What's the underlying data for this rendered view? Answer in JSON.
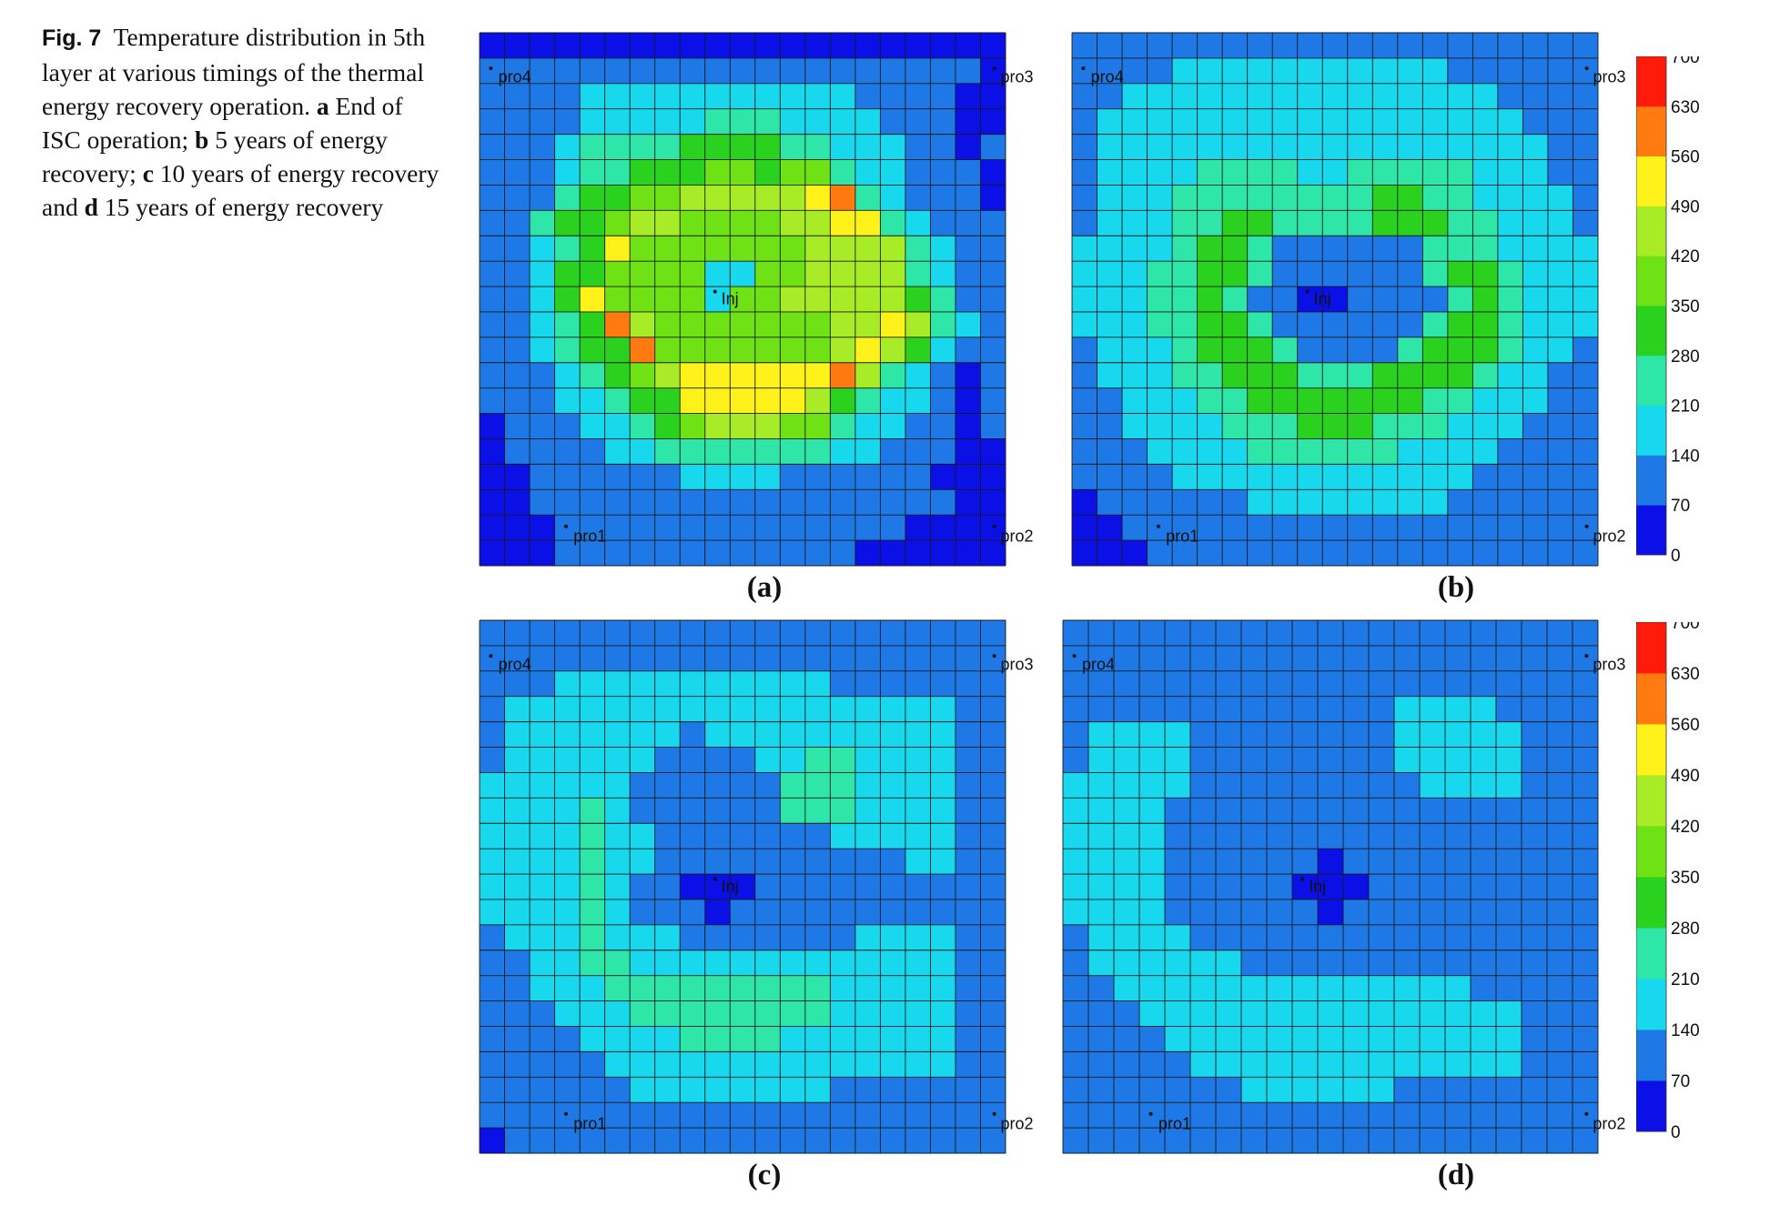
{
  "caption": {
    "label": "Fig. 7",
    "p1": "Temperature distribution in 5th layer at various timings of the thermal energy recovery operation. ",
    "a_key": "a",
    "a_text": " End of ISC operation; ",
    "b_key": "b",
    "b_text": " 5 years of energy recovery; ",
    "c_key": "c",
    "c_text": " 10 years of energy recovery and ",
    "d_key": "d",
    "d_text": " 15 years of energy recovery"
  },
  "colorscale": {
    "ticks": [
      "700",
      "630",
      "560",
      "490",
      "420",
      "350",
      "280",
      "210",
      "140",
      "70",
      "0"
    ],
    "colors": [
      "#0a10e6",
      "#1e78e6",
      "#17d8ec",
      "#2ee6a8",
      "#2ad21f",
      "#6ee214",
      "#a8ec28",
      "#fff21a",
      "#ff7a10",
      "#ff1a0a"
    ],
    "grid_line": "#1a1a1a"
  },
  "chart_data": [
    {
      "type": "heatmap",
      "panel_label": "(a)",
      "well_labels": [
        "pro4",
        "pro3",
        "pro1",
        "pro2",
        "Inj"
      ],
      "grid": [
        "AAAAAAAAAAAAAAAAAAAAA",
        "BBBBBBBBBBBBBBBBBBBBA",
        "BBBBCCCCCCCCCCCBBBBAA",
        "BBBBCCCCCDDDCCCCBBBAA",
        "BBBCDDDDEEEEDDCCCBBAB",
        "BBBCDDEEEFFEFFDCCBBBA",
        "BBBDEEFFGGGGGHIDCBBBA",
        "BBDEEFGGFFFFGGHHDCBBB",
        "BBCDEHFFFFFFFGGGGDCBB",
        "BBCEEFFFFCCFFGGGGDCBB",
        "BBCEHFFFFCFFGGGGGEDBB",
        "BBCDEIGFFFFFFFGGHGDCB",
        "BBCDEEIFFFFFFFGHGECBB",
        "BBBCDEFGHHHHHHIGDCBAB",
        "BBBCCDEEHHHHHGEDCCBAB",
        "ABBBCCDEFGGGFFDCCBBAB",
        "ABBBBCCDDDDDDDCCBBBAA",
        "AABBBBBBCCCCBBBBBBAAA",
        "AABBBBBBBBBBBBBBBBBAA",
        "AAABBBBBBBBBBBBBBAAAA",
        "AAABBBBBBBBBBBBAAAAAA"
      ]
    },
    {
      "type": "heatmap",
      "panel_label": "(b)",
      "well_labels": [
        "pro4",
        "pro3",
        "pro1",
        "pro2",
        "Inj"
      ],
      "grid": [
        "BBBBBBBBBBBBBBBBBBBBB",
        "BBBBCCCCCCCCCCCBBBBBB",
        "BBCCCCCCCCCCCCCCCBBBB",
        "BCCCCCCCCCCCCCCCCCBBB",
        "BCCCCCCCCCCCCCCCCCCBB",
        "BCCCCDDDDCCDDDDDCCCBB",
        "BCCCDDDDDDDDEEDDCCCCB",
        "BCCCDDEEDDDDEEEDDCCCB",
        "CCCCDEEDBBBBBBDDDCCCC",
        "CCCDDEEDBBBBBBDEEDCCC",
        "CCCDDEDBBAABBBBDEDCCC",
        "CCCDDEEDBBBBBBDEEDCCC",
        "BCCCDEEEDBBBBDEEEDCCB",
        "BCCCDDEEEDDDEEEEDCCBB",
        "BBCCCDDEEEEEEEDDCCCBB",
        "BBCCCCDDDEEEDDDCCCBBB",
        "BBBCCCCDDDDDDCCCCBBBB",
        "BBBBCCCCCCCCCCCCBBBBB",
        "ABBBBBBCCCCCCCCBBBBBB",
        "AABBBBBBBBBBBBBBBBBBB",
        "AAABBBBBBBBBBBBBBBBBB"
      ]
    },
    {
      "type": "heatmap",
      "panel_label": "(c)",
      "well_labels": [
        "pro4",
        "pro3",
        "pro1",
        "pro2",
        "Inj"
      ],
      "grid": [
        "BBBBBBBBBBBBBBBBBBBBB",
        "BBBBBBBBBBBBBBBBBBBBB",
        "BBBCCCCCCCCCCCBBBBBBB",
        "BCCCCCCCCCCCCCCCCCCBB",
        "BCCCCCCCBCCCCCCCCCCBB",
        "BCCCCCCBBBBCCDDCCCCBB",
        "CCCCCCBBBBBBDDDCCCCBB",
        "CCCCDCBBBBBBDDDCCCCBB",
        "CCCCDCCBBBBBBBCCCCCBB",
        "CCCCDCCBBBBBBBBBBCCBB",
        "CCCCDCBBAAABBBBBBBBBB",
        "CCCCDCBBBABBBBBBBBBBB",
        "BCCCDCCCBBBBBBBCCCCBB",
        "BBCCDDCCCCCCCCCCCCCBB",
        "BBCCCDDDDDDDDDCCCCCBB",
        "BBBCCCDDDDDDDDCCCCCBB",
        "BBBBCCCCDDDDCCCCCCCBB",
        "BBBBBCCCCCCCCCCCCCCBB",
        "BBBBBBCCCCCCCCBBBBBBB",
        "BBBBBBBBBBBBBBBBBBBBB",
        "ABBBBBBBBBBBBBBBBBBBB"
      ]
    },
    {
      "type": "heatmap",
      "panel_label": "(d)",
      "well_labels": [
        "pro4",
        "pro3",
        "pro1",
        "pro2",
        "Inj"
      ],
      "grid": [
        "BBBBBBBBBBBBBBBBBBBBB",
        "BBBBBBBBBBBBBBBBBBBBB",
        "BBBBBBBBBBBBBBBBBBBBB",
        "BBBBBBBBBBBBBCCCCBBBB",
        "BCCCCBBBBBBBBCCCCCBBB",
        "BCCCCBBBBBBBBCCCCCBBB",
        "CCCCCBBBBBBBBBCCCCBBB",
        "CCCCBBBBBBBBBBBBBBBBB",
        "CCCCBBBBBBBBBBBBBBBBB",
        "CCCCBBBBBBABBBBBBBBBB",
        "CCCCBBBBBAAABBBBBBBBB",
        "CCCCBBBBBBABBBBBBBBBB",
        "BCCCCBBBBBBBBBBBBBBBB",
        "BCCCCCCBBBBBBBBBBBBBB",
        "BBCCCCCCCCCCCCCCBBBBB",
        "BBBCCCCCCCCCCCCCCCBBB",
        "BBBBCCCCCCCCCCCCCCBBB",
        "BBBBBCCCCCCCCCCCCCBBB",
        "BBBBBBBCCCCCCBBBBBBBB",
        "BBBBBBBBBBBBBBBBBBBBB",
        "BBBBBBBBBBBBBBBBBBBBB"
      ]
    }
  ]
}
